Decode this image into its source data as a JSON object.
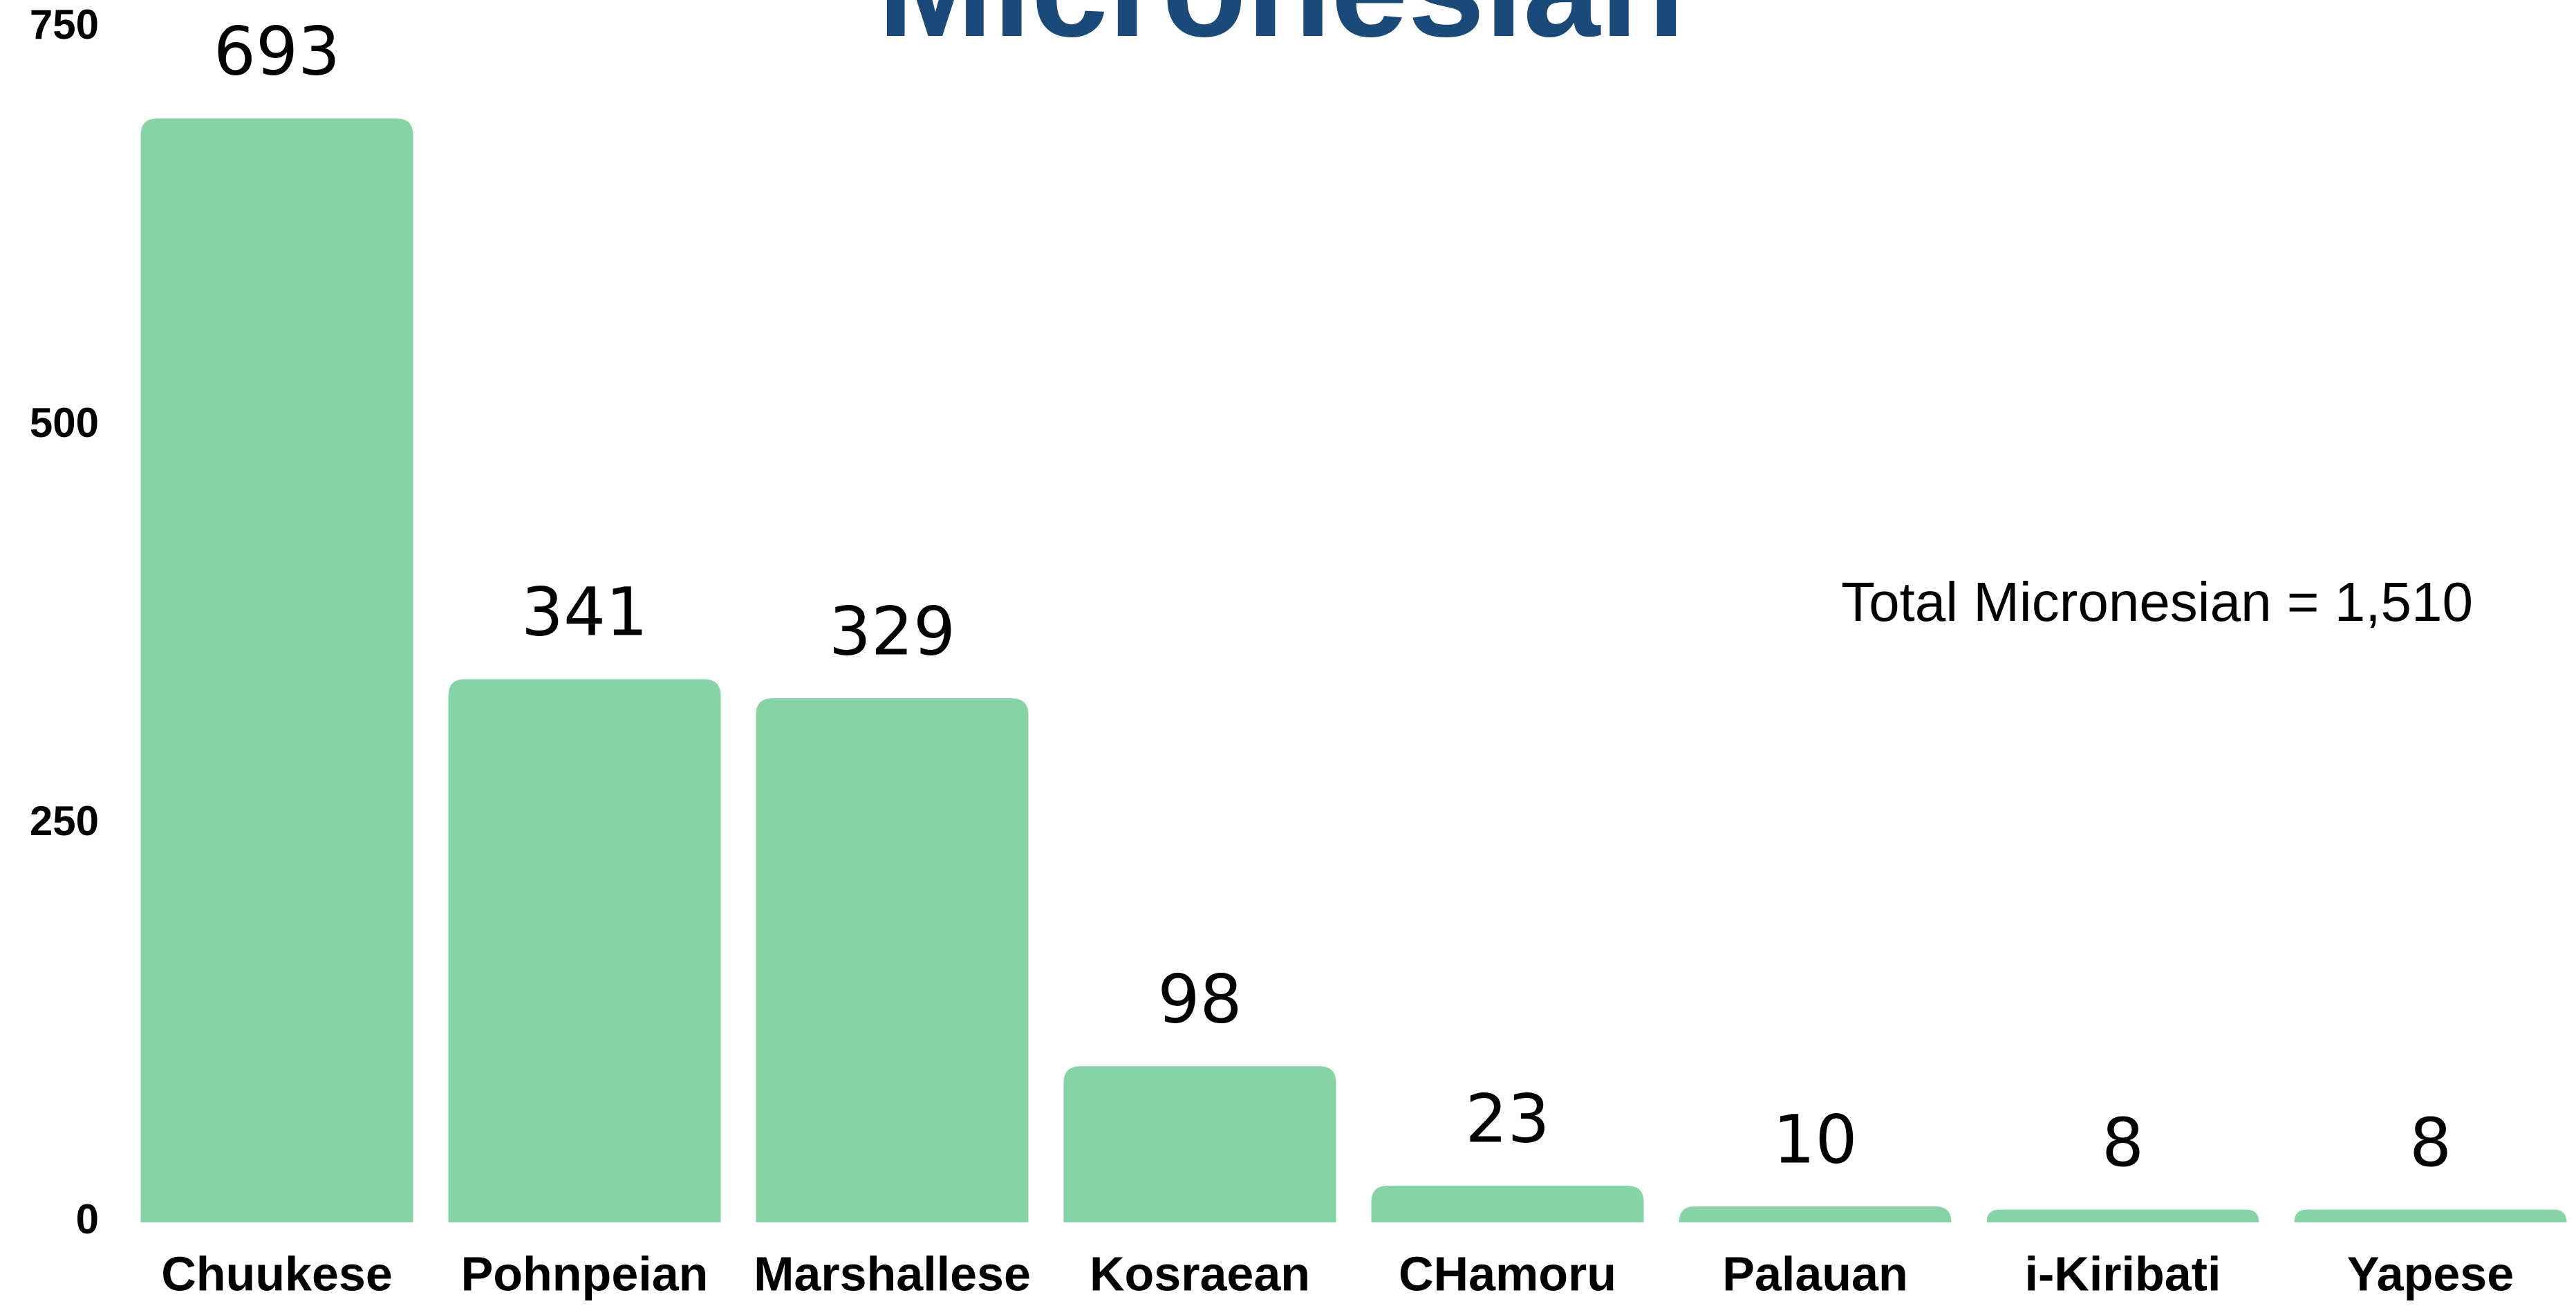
{
  "chart_data": {
    "type": "bar",
    "title": "Micronesian",
    "categories": [
      "Chuukese",
      "Pohnpeian",
      "Marshallese",
      "Kosraean",
      "CHamoru",
      "Palauan",
      "i-Kiribati",
      "Yapese"
    ],
    "values": [
      693,
      341,
      329,
      98,
      23,
      10,
      8,
      8
    ],
    "color": "#86d4a6",
    "ylim": [
      0,
      750
    ],
    "yticks": [
      0,
      250,
      500,
      750
    ],
    "grid": false,
    "annotation": "Total Micronesian = 1,510"
  }
}
